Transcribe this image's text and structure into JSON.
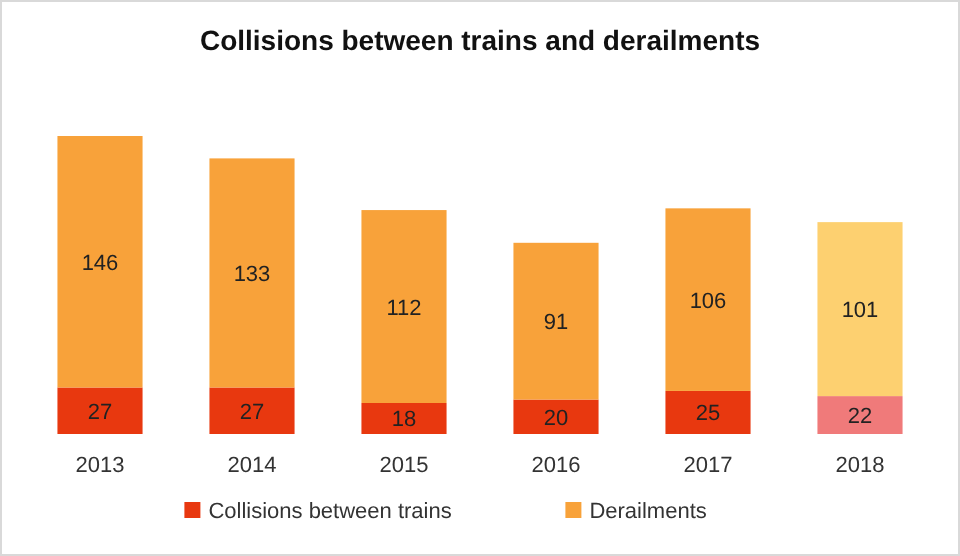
{
  "chart_data": {
    "type": "bar",
    "title": "Collisions between trains and derailments",
    "categories": [
      "2013",
      "2014",
      "2015",
      "2016",
      "2017",
      "2018"
    ],
    "stacked": true,
    "data_labels": true,
    "legend": "bottom",
    "series": [
      {
        "name": "Collisions between trains",
        "color": "#e8380f",
        "colors": [
          "#e8380f",
          "#e8380f",
          "#e8380f",
          "#e8380f",
          "#e8380f",
          "#f07a7a"
        ],
        "values": [
          27,
          27,
          18,
          20,
          25,
          22
        ]
      },
      {
        "name": "Derailments",
        "color": "#f8a23a",
        "colors": [
          "#f8a23a",
          "#f8a23a",
          "#f8a23a",
          "#f8a23a",
          "#f8a23a",
          "#fdd070"
        ],
        "values": [
          146,
          133,
          112,
          91,
          106,
          101
        ]
      }
    ]
  }
}
